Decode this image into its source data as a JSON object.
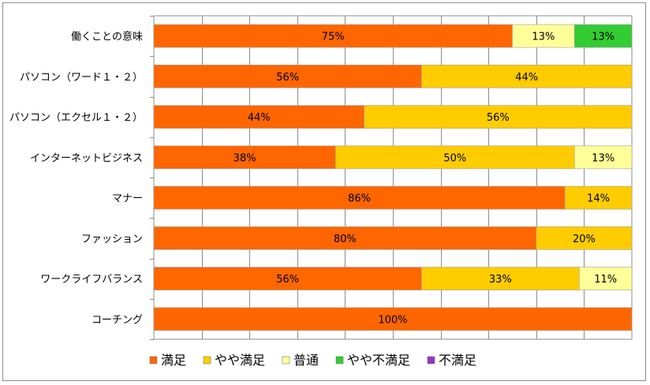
{
  "chart_data": {
    "type": "bar",
    "orientation": "horizontal",
    "stacked": "percent",
    "title": "",
    "xlabel": "",
    "ylabel": "",
    "xlim": [
      0,
      100
    ],
    "grid": true,
    "legend_position": "bottom",
    "categories": [
      "働くことの意味",
      "パソコン（ワード１・２）",
      "パソコン（エクセル１・２）",
      "インターネットビジネス",
      "マナー",
      "ファッション",
      "ワークライフバランス",
      "コーチング"
    ],
    "series": [
      {
        "name": "満足",
        "color": "#ff6600",
        "values": [
          75,
          56,
          44,
          38,
          86,
          80,
          56,
          100
        ]
      },
      {
        "name": "やや満足",
        "color": "#ffcc00",
        "values": [
          0,
          44,
          56,
          50,
          14,
          20,
          33,
          0
        ]
      },
      {
        "name": "普通",
        "color": "#ffff99",
        "values": [
          13,
          0,
          0,
          13,
          0,
          0,
          11,
          0
        ]
      },
      {
        "name": "やや不満足",
        "color": "#33cc33",
        "values": [
          13,
          0,
          0,
          0,
          0,
          0,
          0,
          0
        ]
      },
      {
        "name": "不満足",
        "color": "#9933cc",
        "values": [
          0,
          0,
          0,
          0,
          0,
          0,
          0,
          0
        ]
      }
    ]
  }
}
